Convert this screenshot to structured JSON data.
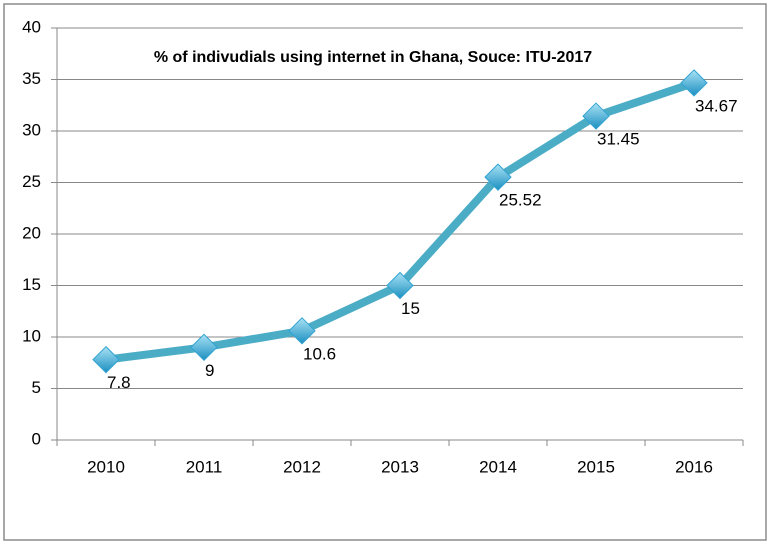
{
  "chart_data": {
    "type": "line",
    "title": "% of indivudials  using internet in Ghana, Souce: ITU-2017",
    "categories": [
      "2010",
      "2011",
      "2012",
      "2013",
      "2014",
      "2015",
      "2016"
    ],
    "values": [
      7.8,
      9,
      10.6,
      15,
      25.52,
      31.45,
      34.67
    ],
    "color": "#4bacc6",
    "marker_color": "#31a3d2",
    "ylim": [
      0,
      40
    ],
    "yticks": [
      0,
      5,
      10,
      15,
      20,
      25,
      30,
      35,
      40
    ],
    "grid": true
  }
}
